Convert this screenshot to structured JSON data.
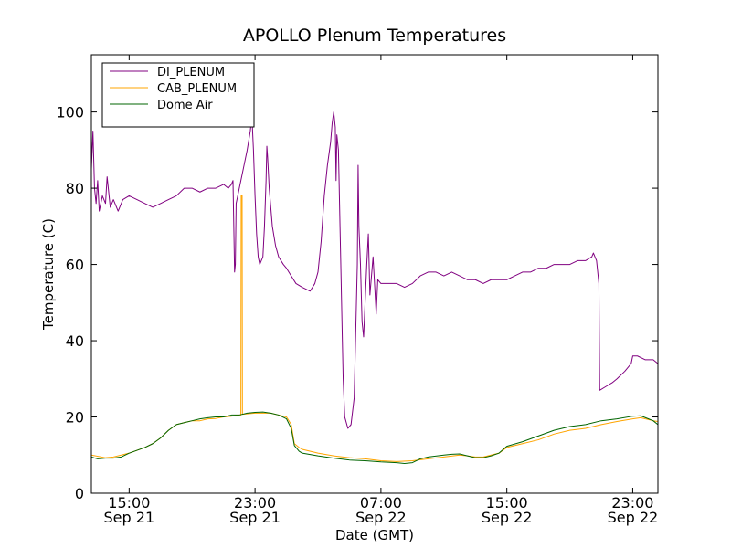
{
  "chart_data": {
    "type": "line",
    "title": "APOLLO Plenum Temperatures",
    "xlabel": "Date (GMT)",
    "ylabel": "Temperature (C)",
    "xlim": [
      12.6,
      48.6
    ],
    "ylim": [
      0,
      115
    ],
    "x_unit": "hours since Sep 21 00:00 GMT",
    "yticks": [
      0,
      20,
      40,
      60,
      80,
      100
    ],
    "xticks": [
      {
        "x": 15,
        "line1": "15:00",
        "line2": "Sep 21"
      },
      {
        "x": 23,
        "line1": "23:00",
        "line2": "Sep 21"
      },
      {
        "x": 31,
        "line1": "07:00",
        "line2": "Sep 22"
      },
      {
        "x": 39,
        "line1": "15:00",
        "line2": "Sep 22"
      },
      {
        "x": 47,
        "line1": "23:00",
        "line2": "Sep 22"
      }
    ],
    "legend_position": "top-left",
    "series": [
      {
        "name": "DI_PLENUM",
        "color": "#800080",
        "points": [
          [
            12.6,
            85
          ],
          [
            12.7,
            95
          ],
          [
            12.8,
            80
          ],
          [
            12.9,
            76
          ],
          [
            13.0,
            82
          ],
          [
            13.1,
            74
          ],
          [
            13.3,
            78
          ],
          [
            13.5,
            76
          ],
          [
            13.6,
            83
          ],
          [
            13.8,
            75
          ],
          [
            14.0,
            77
          ],
          [
            14.3,
            74
          ],
          [
            14.6,
            77
          ],
          [
            15.0,
            78
          ],
          [
            15.5,
            77
          ],
          [
            16.0,
            76
          ],
          [
            16.5,
            75
          ],
          [
            17.0,
            76
          ],
          [
            17.5,
            77
          ],
          [
            18.0,
            78
          ],
          [
            18.5,
            80
          ],
          [
            19.0,
            80
          ],
          [
            19.5,
            79
          ],
          [
            20.0,
            80
          ],
          [
            20.5,
            80
          ],
          [
            21.0,
            81
          ],
          [
            21.3,
            80
          ],
          [
            21.5,
            81
          ],
          [
            21.6,
            82
          ],
          [
            21.7,
            58
          ],
          [
            21.75,
            60
          ],
          [
            21.8,
            76
          ],
          [
            21.9,
            78
          ],
          [
            22.1,
            82
          ],
          [
            22.3,
            86
          ],
          [
            22.5,
            90
          ],
          [
            22.7,
            95
          ],
          [
            22.8,
            99
          ],
          [
            22.9,
            90
          ],
          [
            23.0,
            78
          ],
          [
            23.1,
            68
          ],
          [
            23.2,
            62
          ],
          [
            23.3,
            60
          ],
          [
            23.5,
            62
          ],
          [
            23.6,
            70
          ],
          [
            23.7,
            82
          ],
          [
            23.75,
            91
          ],
          [
            23.8,
            88
          ],
          [
            23.9,
            80
          ],
          [
            24.1,
            70
          ],
          [
            24.3,
            65
          ],
          [
            24.5,
            62
          ],
          [
            24.8,
            60
          ],
          [
            25.0,
            59
          ],
          [
            25.3,
            57
          ],
          [
            25.6,
            55
          ],
          [
            26.0,
            54
          ],
          [
            26.5,
            53
          ],
          [
            26.8,
            55
          ],
          [
            27.0,
            58
          ],
          [
            27.2,
            66
          ],
          [
            27.4,
            78
          ],
          [
            27.6,
            86
          ],
          [
            27.8,
            92
          ],
          [
            27.9,
            97
          ],
          [
            28.0,
            100
          ],
          [
            28.1,
            96
          ],
          [
            28.15,
            82
          ],
          [
            28.2,
            94
          ],
          [
            28.3,
            90
          ],
          [
            28.4,
            70
          ],
          [
            28.5,
            50
          ],
          [
            28.6,
            30
          ],
          [
            28.7,
            20
          ],
          [
            28.9,
            17
          ],
          [
            29.1,
            18
          ],
          [
            29.3,
            25
          ],
          [
            29.5,
            60
          ],
          [
            29.55,
            86
          ],
          [
            29.6,
            70
          ],
          [
            29.7,
            60
          ],
          [
            29.8,
            45
          ],
          [
            29.9,
            41
          ],
          [
            30.1,
            60
          ],
          [
            30.2,
            68
          ],
          [
            30.3,
            52
          ],
          [
            30.5,
            62
          ],
          [
            30.7,
            47
          ],
          [
            30.8,
            56
          ],
          [
            31.0,
            55
          ],
          [
            31.5,
            55
          ],
          [
            32.0,
            55
          ],
          [
            32.5,
            54
          ],
          [
            33.0,
            55
          ],
          [
            33.5,
            57
          ],
          [
            34.0,
            58
          ],
          [
            34.5,
            58
          ],
          [
            35.0,
            57
          ],
          [
            35.5,
            58
          ],
          [
            36.0,
            57
          ],
          [
            36.5,
            56
          ],
          [
            37.0,
            56
          ],
          [
            37.5,
            55
          ],
          [
            38.0,
            56
          ],
          [
            38.5,
            56
          ],
          [
            39.0,
            56
          ],
          [
            39.5,
            57
          ],
          [
            40.0,
            58
          ],
          [
            40.5,
            58
          ],
          [
            41.0,
            59
          ],
          [
            41.5,
            59
          ],
          [
            42.0,
            60
          ],
          [
            42.5,
            60
          ],
          [
            43.0,
            60
          ],
          [
            43.5,
            61
          ],
          [
            44.0,
            61
          ],
          [
            44.4,
            62
          ],
          [
            44.5,
            63
          ],
          [
            44.7,
            61
          ],
          [
            44.85,
            55
          ],
          [
            44.9,
            27
          ],
          [
            45.3,
            28
          ],
          [
            45.7,
            29
          ],
          [
            46.0,
            30
          ],
          [
            46.5,
            32
          ],
          [
            46.9,
            34
          ],
          [
            47.0,
            36
          ],
          [
            47.3,
            36
          ],
          [
            47.8,
            35
          ],
          [
            48.3,
            35
          ],
          [
            48.6,
            34
          ]
        ]
      },
      {
        "name": "CAB_PLENUM",
        "color": "#ffa500",
        "points": [
          [
            12.6,
            10
          ],
          [
            13.5,
            9.3
          ],
          [
            14.0,
            9.5
          ],
          [
            14.5,
            10
          ],
          [
            15.0,
            10.5
          ],
          [
            16.0,
            12
          ],
          [
            16.5,
            13
          ],
          [
            17.0,
            14.5
          ],
          [
            17.5,
            16.5
          ],
          [
            18.0,
            18
          ],
          [
            18.5,
            18.5
          ],
          [
            19.0,
            19
          ],
          [
            19.5,
            19
          ],
          [
            20.0,
            19.5
          ],
          [
            20.5,
            19.6
          ],
          [
            21.0,
            20
          ],
          [
            21.5,
            20.2
          ],
          [
            22.0,
            20.5
          ],
          [
            22.1,
            20.5
          ],
          [
            22.12,
            78
          ],
          [
            22.18,
            78
          ],
          [
            22.2,
            20.7
          ],
          [
            22.5,
            20.8
          ],
          [
            23.0,
            21
          ],
          [
            23.5,
            21
          ],
          [
            24.0,
            21
          ],
          [
            24.5,
            20.5
          ],
          [
            25.0,
            20
          ],
          [
            25.3,
            18
          ],
          [
            25.5,
            13
          ],
          [
            25.8,
            12
          ],
          [
            26.0,
            11.5
          ],
          [
            27.0,
            10.5
          ],
          [
            28.0,
            9.8
          ],
          [
            29.0,
            9.3
          ],
          [
            30.0,
            9
          ],
          [
            31.0,
            8.5
          ],
          [
            32.0,
            8.3
          ],
          [
            33.0,
            8.5
          ],
          [
            34.0,
            9
          ],
          [
            35.0,
            9.5
          ],
          [
            36.0,
            10
          ],
          [
            36.5,
            9.8
          ],
          [
            37.0,
            9.5
          ],
          [
            37.5,
            9.5
          ],
          [
            38.0,
            10
          ],
          [
            38.5,
            10.5
          ],
          [
            39.0,
            12
          ],
          [
            40.0,
            13
          ],
          [
            41.0,
            14
          ],
          [
            42.0,
            15.5
          ],
          [
            43.0,
            16.5
          ],
          [
            44.0,
            17
          ],
          [
            45.0,
            18
          ],
          [
            46.0,
            18.8
          ],
          [
            47.0,
            19.5
          ],
          [
            47.5,
            19.8
          ],
          [
            48.0,
            19.3
          ],
          [
            48.3,
            19
          ],
          [
            48.6,
            18.8
          ]
        ]
      },
      {
        "name": "Dome Air",
        "color": "#006400",
        "points": [
          [
            12.6,
            9.5
          ],
          [
            13.0,
            9.0
          ],
          [
            13.5,
            9.2
          ],
          [
            14.0,
            9.2
          ],
          [
            14.5,
            9.5
          ],
          [
            15.0,
            10.5
          ],
          [
            16.0,
            12
          ],
          [
            16.5,
            13
          ],
          [
            17.0,
            14.5
          ],
          [
            17.5,
            16.5
          ],
          [
            18.0,
            18
          ],
          [
            18.5,
            18.5
          ],
          [
            19.0,
            19
          ],
          [
            19.5,
            19.5
          ],
          [
            20.0,
            19.8
          ],
          [
            20.5,
            20
          ],
          [
            21.0,
            20
          ],
          [
            21.5,
            20.5
          ],
          [
            22.0,
            20.5
          ],
          [
            22.5,
            21
          ],
          [
            23.0,
            21.2
          ],
          [
            23.5,
            21.3
          ],
          [
            24.0,
            21
          ],
          [
            24.5,
            20.5
          ],
          [
            25.0,
            19.5
          ],
          [
            25.3,
            17
          ],
          [
            25.5,
            12.5
          ],
          [
            25.8,
            11
          ],
          [
            26.0,
            10.5
          ],
          [
            27.0,
            9.8
          ],
          [
            28.0,
            9.2
          ],
          [
            29.0,
            8.7
          ],
          [
            30.0,
            8.5
          ],
          [
            31.0,
            8.2
          ],
          [
            32.0,
            8
          ],
          [
            32.5,
            7.8
          ],
          [
            33.0,
            8
          ],
          [
            33.5,
            9
          ],
          [
            34.0,
            9.5
          ],
          [
            35.0,
            10
          ],
          [
            35.5,
            10.2
          ],
          [
            36.0,
            10.3
          ],
          [
            36.5,
            9.8
          ],
          [
            37.0,
            9.3
          ],
          [
            37.5,
            9.3
          ],
          [
            38.0,
            9.8
          ],
          [
            38.5,
            10.5
          ],
          [
            39.0,
            12.3
          ],
          [
            40.0,
            13.5
          ],
          [
            41.0,
            15
          ],
          [
            42.0,
            16.5
          ],
          [
            43.0,
            17.5
          ],
          [
            44.0,
            18
          ],
          [
            45.0,
            19
          ],
          [
            46.0,
            19.5
          ],
          [
            47.0,
            20.2
          ],
          [
            47.5,
            20.3
          ],
          [
            48.0,
            19.5
          ],
          [
            48.3,
            19
          ],
          [
            48.6,
            18
          ]
        ]
      }
    ]
  }
}
